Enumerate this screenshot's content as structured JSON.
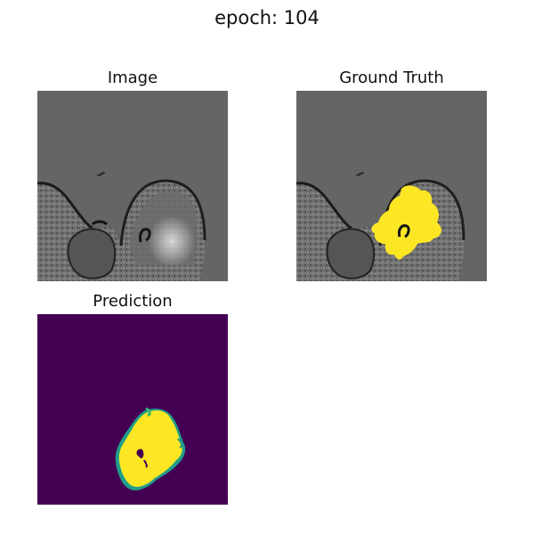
{
  "figure": {
    "title": "epoch: 104"
  },
  "panels": {
    "image": {
      "title": "Image"
    },
    "ground_truth": {
      "title": "Ground Truth",
      "overlay_color": "#fde725"
    },
    "prediction": {
      "title": "Prediction",
      "background_color": "#440154",
      "foreground_color": "#fde725"
    }
  },
  "colors": {
    "background_gray": "#656565",
    "tissue_dark": "#2a2a2a",
    "tissue_mid": "#7a7a7a",
    "tissue_light": "#c8c8c8"
  }
}
